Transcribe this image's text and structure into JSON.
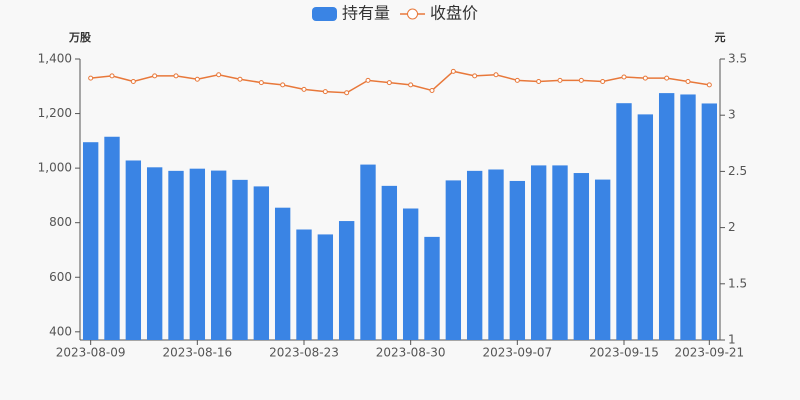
{
  "chart_data": {
    "type": "bar-line",
    "y_label": "万股",
    "y2_label": "元",
    "categories": [
      "2023-08-09",
      null,
      null,
      null,
      null,
      "2023-08-16",
      null,
      null,
      null,
      null,
      "2023-08-23",
      null,
      null,
      null,
      null,
      "2023-08-30",
      null,
      null,
      null,
      null,
      "2023-09-07",
      null,
      null,
      null,
      null,
      "2023-09-15",
      null,
      null,
      null,
      "2023-09-21"
    ],
    "series": [
      {
        "name": "持有量",
        "type": "bar",
        "color": "#3a84e4",
        "values": [
          1095,
          1115,
          1028,
          1003,
          990,
          998,
          991,
          957,
          933,
          855,
          775,
          757,
          806,
          1013,
          935,
          852,
          748,
          955,
          990,
          995,
          953,
          1010,
          1010,
          982,
          958,
          1238,
          1197,
          1275,
          1270,
          1237
        ]
      },
      {
        "name": "收盘价",
        "type": "line",
        "axis": "y2",
        "color": "#e8783a",
        "values": [
          3.33,
          3.35,
          3.3,
          3.35,
          3.35,
          3.32,
          3.36,
          3.32,
          3.29,
          3.27,
          3.23,
          3.21,
          3.2,
          3.31,
          3.29,
          3.27,
          3.22,
          3.39,
          3.35,
          3.36,
          3.31,
          3.3,
          3.31,
          3.31,
          3.3,
          3.34,
          3.33,
          3.33,
          3.3,
          3.27
        ]
      }
    ],
    "ylim": [
      370,
      1400
    ],
    "yticks": [
      400,
      600,
      800,
      {
        "value": 1000,
        "label": "1,000"
      },
      {
        "value": 1200,
        "label": "1,200"
      },
      {
        "value": 1400,
        "label": "1,400"
      }
    ],
    "y2lim": [
      1,
      3.5
    ],
    "y2ticks": [
      1,
      1.5,
      2,
      2.5,
      3,
      3.5
    ],
    "grid": false
  }
}
